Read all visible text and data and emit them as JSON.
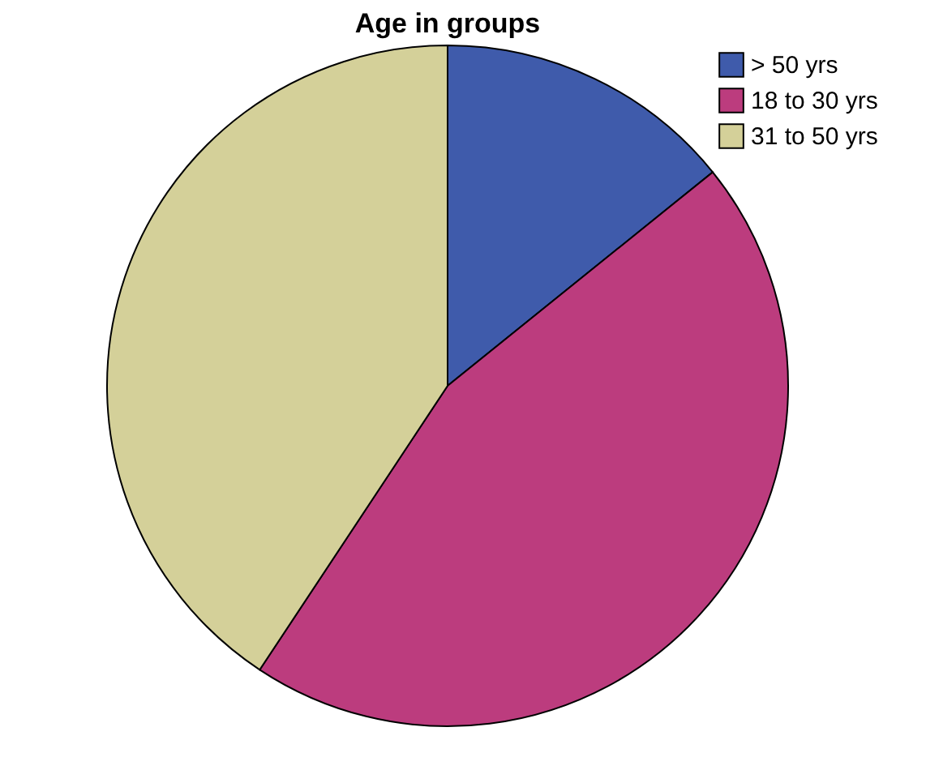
{
  "chart_data": {
    "type": "pie",
    "title": "Age in groups",
    "categories": [
      "> 50 yrs",
      "18 to 30 yrs",
      "31 to 50 yrs"
    ],
    "values": [
      14.2,
      45.1,
      40.7
    ],
    "colors": [
      "#3f5bab",
      "#bc3c7e",
      "#d4d099"
    ],
    "legend": "top right"
  }
}
